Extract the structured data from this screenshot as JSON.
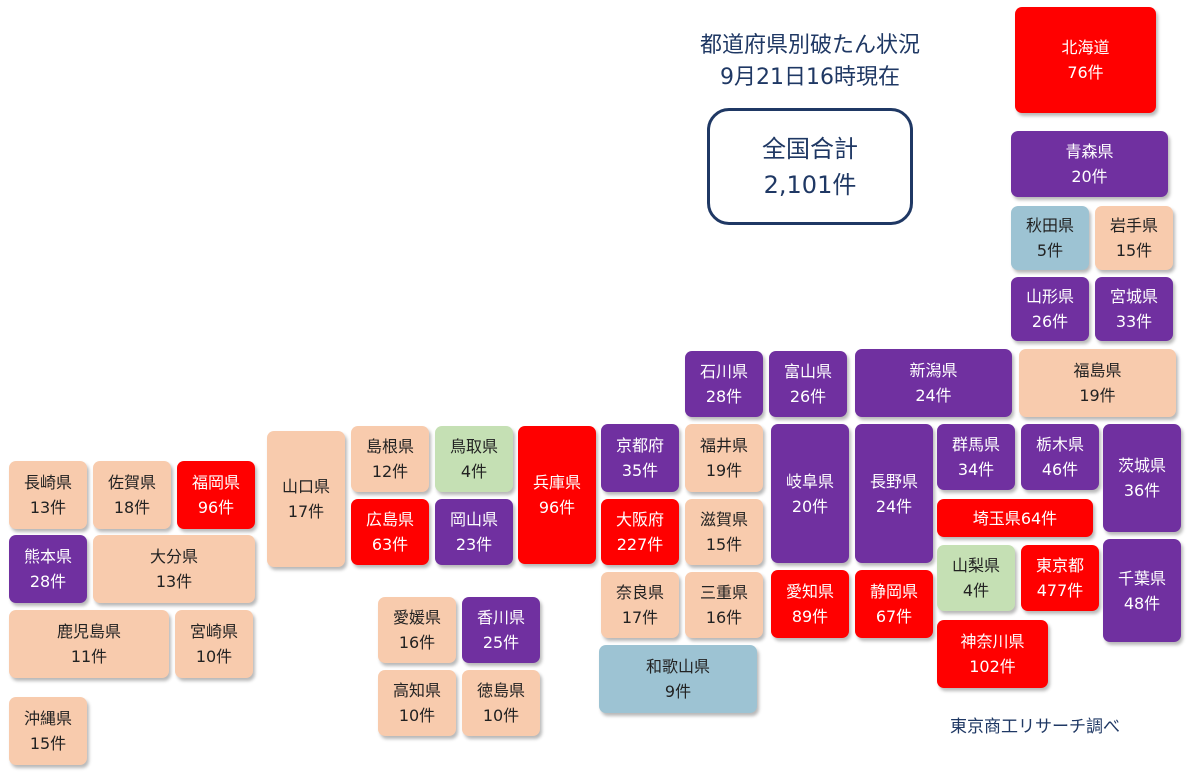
{
  "title": {
    "line1": "都道府県別破たん状況",
    "line2": "9月21日16時現在"
  },
  "total": {
    "label": "全国合計",
    "value": "2,101件"
  },
  "source": "東京商工リサーチ調べ",
  "legend_colors": {
    "red": "#ff0000",
    "purple": "#7030a0",
    "orange": "#f8cbad",
    "blue": "#9dc3d3",
    "green": "#c5e0b4"
  },
  "prefectures": {
    "hokkaido": {
      "name": "北海道",
      "count": "76件",
      "color": "red"
    },
    "aomori": {
      "name": "青森県",
      "count": "20件",
      "color": "purple"
    },
    "akita": {
      "name": "秋田県",
      "count": "5件",
      "color": "blue"
    },
    "iwate": {
      "name": "岩手県",
      "count": "15件",
      "color": "orange"
    },
    "yamagata": {
      "name": "山形県",
      "count": "26件",
      "color": "purple"
    },
    "miyagi": {
      "name": "宮城県",
      "count": "33件",
      "color": "purple"
    },
    "ishikawa": {
      "name": "石川県",
      "count": "28件",
      "color": "purple"
    },
    "toyama": {
      "name": "富山県",
      "count": "26件",
      "color": "purple"
    },
    "niigata": {
      "name": "新潟県",
      "count": "24件",
      "color": "purple"
    },
    "fukushima": {
      "name": "福島県",
      "count": "19件",
      "color": "orange"
    },
    "nagasaki": {
      "name": "長崎県",
      "count": "13件",
      "color": "orange"
    },
    "saga": {
      "name": "佐賀県",
      "count": "18件",
      "color": "orange"
    },
    "fukuoka": {
      "name": "福岡県",
      "count": "96件",
      "color": "red"
    },
    "yamaguchi": {
      "name": "山口県",
      "count": "17件",
      "color": "orange"
    },
    "shimane": {
      "name": "島根県",
      "count": "12件",
      "color": "orange"
    },
    "tottori": {
      "name": "鳥取県",
      "count": "4件",
      "color": "green"
    },
    "hyogo": {
      "name": "兵庫県",
      "count": "96件",
      "color": "red"
    },
    "kyoto": {
      "name": "京都府",
      "count": "35件",
      "color": "purple"
    },
    "fukui": {
      "name": "福井県",
      "count": "19件",
      "color": "orange"
    },
    "gifu": {
      "name": "岐阜県",
      "count": "20件",
      "color": "purple"
    },
    "nagano": {
      "name": "長野県",
      "count": "24件",
      "color": "purple"
    },
    "gunma": {
      "name": "群馬県",
      "count": "34件",
      "color": "purple"
    },
    "tochigi": {
      "name": "栃木県",
      "count": "46件",
      "color": "purple"
    },
    "ibaraki": {
      "name": "茨城県",
      "count": "36件",
      "color": "purple"
    },
    "kumamoto": {
      "name": "熊本県",
      "count": "28件",
      "color": "purple"
    },
    "oita": {
      "name": "大分県",
      "count": "13件",
      "color": "orange"
    },
    "hiroshima": {
      "name": "広島県",
      "count": "63件",
      "color": "red"
    },
    "okayama": {
      "name": "岡山県",
      "count": "23件",
      "color": "purple"
    },
    "osaka": {
      "name": "大阪府",
      "count": "227件",
      "color": "red"
    },
    "shiga": {
      "name": "滋賀県",
      "count": "15件",
      "color": "orange"
    },
    "saitama": {
      "name": "埼玉県",
      "count": "64件",
      "color": "red"
    },
    "yamanashi": {
      "name": "山梨県",
      "count": "4件",
      "color": "green"
    },
    "tokyo": {
      "name": "東京都",
      "count": "477件",
      "color": "red"
    },
    "chiba": {
      "name": "千葉県",
      "count": "48件",
      "color": "purple"
    },
    "kagoshima": {
      "name": "鹿児島県",
      "count": "11件",
      "color": "orange"
    },
    "miyazaki": {
      "name": "宮崎県",
      "count": "10件",
      "color": "orange"
    },
    "ehime": {
      "name": "愛媛県",
      "count": "16件",
      "color": "orange"
    },
    "kagawa": {
      "name": "香川県",
      "count": "25件",
      "color": "purple"
    },
    "nara": {
      "name": "奈良県",
      "count": "17件",
      "color": "orange"
    },
    "mie": {
      "name": "三重県",
      "count": "16件",
      "color": "orange"
    },
    "aichi": {
      "name": "愛知県",
      "count": "89件",
      "color": "red"
    },
    "shizuoka": {
      "name": "静岡県",
      "count": "67件",
      "color": "red"
    },
    "kanagawa": {
      "name": "神奈川県",
      "count": "102件",
      "color": "red"
    },
    "wakayama": {
      "name": "和歌山県",
      "count": "9件",
      "color": "blue"
    },
    "kochi": {
      "name": "高知県",
      "count": "10件",
      "color": "orange"
    },
    "tokushima": {
      "name": "徳島県",
      "count": "10件",
      "color": "orange"
    },
    "okinawa": {
      "name": "沖縄県",
      "count": "15件",
      "color": "orange"
    }
  }
}
